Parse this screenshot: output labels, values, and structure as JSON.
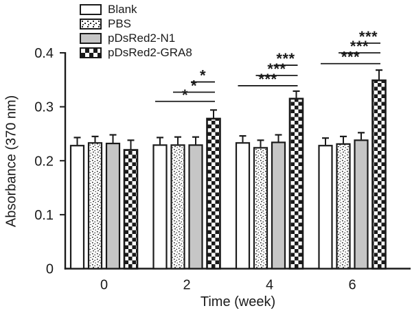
{
  "figure": {
    "background": "#ffffff"
  },
  "chart_data": {
    "type": "bar",
    "title": "",
    "xlabel": "Time (week)",
    "ylabel": "Absorbance (370 nm)",
    "categories": [
      "0",
      "2",
      "4",
      "6"
    ],
    "ylim": [
      0,
      0.4
    ],
    "yticks": [
      0,
      0.1,
      0.2,
      0.3,
      0.4
    ],
    "ytick_labels": [
      "0",
      "0.1",
      "0.2",
      "0.3",
      "0.4"
    ],
    "grid": false,
    "legend_position": "top-left",
    "error_bars": "upper-sd",
    "series": [
      {
        "name": "Blank",
        "pattern": "plain-white",
        "values": [
          0.228,
          0.229,
          0.233,
          0.228
        ],
        "errors": [
          0.015,
          0.014,
          0.013,
          0.014
        ]
      },
      {
        "name": "PBS",
        "pattern": "stipple",
        "values": [
          0.233,
          0.229,
          0.224,
          0.231
        ],
        "errors": [
          0.012,
          0.015,
          0.014,
          0.014
        ]
      },
      {
        "name": "pDsRed2-N1",
        "pattern": "solid-gray",
        "values": [
          0.232,
          0.229,
          0.234,
          0.238
        ],
        "errors": [
          0.016,
          0.015,
          0.014,
          0.014
        ]
      },
      {
        "name": "pDsRed2-GRA8",
        "pattern": "checkerboard",
        "values": [
          0.22,
          0.278,
          0.315,
          0.349
        ],
        "errors": [
          0.018,
          0.016,
          0.014,
          0.019
        ]
      }
    ],
    "significance": [
      {
        "category": "2",
        "group_index": 1,
        "comparisons": [
          {
            "from_series": 0,
            "to_series": 3,
            "label": "*",
            "height": 0.31
          },
          {
            "from_series": 1,
            "to_series": 3,
            "label": "*",
            "height": 0.327
          },
          {
            "from_series": 2,
            "to_series": 3,
            "label": "*",
            "height": 0.346
          }
        ]
      },
      {
        "category": "4",
        "group_index": 2,
        "comparisons": [
          {
            "from_series": 0,
            "to_series": 3,
            "label": "***",
            "height": 0.339
          },
          {
            "from_series": 1,
            "to_series": 3,
            "label": "***",
            "height": 0.358
          },
          {
            "from_series": 2,
            "to_series": 3,
            "label": "***",
            "height": 0.377
          }
        ]
      },
      {
        "category": "6",
        "group_index": 3,
        "comparisons": [
          {
            "from_series": 0,
            "to_series": 3,
            "label": "***",
            "height": 0.38
          },
          {
            "from_series": 1,
            "to_series": 3,
            "label": "***",
            "height": 0.4
          },
          {
            "from_series": 2,
            "to_series": 3,
            "label": "***",
            "height": 0.418
          }
        ]
      }
    ],
    "colors": {
      "ink": "#1a1a1a",
      "gray_fill": "#c6c6c6",
      "white_fill": "#ffffff"
    }
  }
}
